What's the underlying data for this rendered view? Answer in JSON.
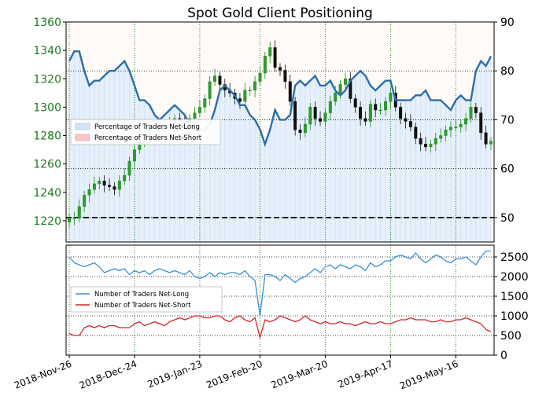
{
  "chart_data": [
    {
      "type": "candlestick+line",
      "title": "Spot Gold Client Positioning",
      "left_axis": {
        "ticks": [
          1220,
          1240,
          1260,
          1280,
          1300,
          1320,
          1340,
          1360
        ],
        "ylim": [
          1205,
          1360
        ],
        "color": "#1a7a1a"
      },
      "right_axis": {
        "ticks": [
          50,
          60,
          70,
          80,
          90
        ],
        "ylim": [
          45,
          90
        ]
      },
      "x_ticks": [
        "2018-Nov-26",
        "2018-Dec-24",
        "2019-Jan-23",
        "2019-Feb-20",
        "2019-Mar-20",
        "2019-Apr-17",
        "2019-May-16"
      ],
      "legend": {
        "placement": "center-left",
        "entries": [
          {
            "name": "Percentage of Traders Net-Long",
            "color": "#cfe4f7"
          },
          {
            "name": "Percentage of Traders Net-Short",
            "color": "#f7c6c6"
          }
        ]
      },
      "reference_line": {
        "value": 50,
        "style": "dashed",
        "color": "#000000"
      },
      "grid": true,
      "price_close": [
        1222,
        1222,
        1230,
        1238,
        1242,
        1246,
        1248,
        1245,
        1244,
        1242,
        1248,
        1252,
        1262,
        1270,
        1276,
        1280,
        1284,
        1286,
        1284,
        1286,
        1288,
        1292,
        1290,
        1288,
        1292,
        1296,
        1300,
        1306,
        1318,
        1322,
        1316,
        1312,
        1310,
        1306,
        1304,
        1312,
        1312,
        1318,
        1324,
        1336,
        1342,
        1328,
        1326,
        1318,
        1304,
        1284,
        1282,
        1288,
        1300,
        1292,
        1290,
        1296,
        1304,
        1310,
        1316,
        1320,
        1306,
        1300,
        1292,
        1290,
        1302,
        1298,
        1298,
        1304,
        1310,
        1300,
        1292,
        1290,
        1286,
        1278,
        1274,
        1272,
        1274,
        1278,
        1280,
        1284,
        1286,
        1286,
        1288,
        1292,
        1300,
        1296,
        1282,
        1274,
        1276
      ],
      "pct_net_long": [
        82,
        84,
        84,
        80,
        77,
        78,
        78,
        79,
        80,
        80,
        81,
        82,
        80,
        77,
        74,
        74,
        73,
        71,
        70,
        71,
        72,
        73,
        72,
        71,
        69,
        68,
        68,
        68,
        69,
        72,
        76,
        77,
        76,
        75,
        73,
        73,
        71,
        70,
        68,
        65,
        68,
        72,
        70,
        70,
        71,
        77,
        78,
        77,
        78,
        79,
        77,
        77,
        78,
        76,
        75,
        76,
        78,
        79,
        80,
        79,
        77,
        76,
        77,
        78,
        78,
        74,
        74,
        74,
        74,
        75,
        75,
        76,
        74,
        74,
        74,
        73,
        72,
        74,
        75,
        74,
        74,
        80,
        82,
        81,
        83
      ]
    },
    {
      "type": "line",
      "yticks": [
        0,
        500,
        1000,
        1500,
        2000,
        2500
      ],
      "ylim": [
        0,
        2800
      ],
      "legend": {
        "placement": "center-left",
        "entries": [
          {
            "name": "Number of Traders Net-Long",
            "color": "#3a8fd6"
          },
          {
            "name": "Number of Traders Net-Short",
            "color": "#d62728"
          }
        ]
      },
      "grid": true,
      "series": [
        {
          "name": "Number of Traders Net-Long",
          "values": [
            2500,
            2350,
            2300,
            2250,
            2300,
            2350,
            2250,
            2100,
            2150,
            2200,
            2150,
            2200,
            2050,
            2150,
            2100,
            2150,
            2050,
            2150,
            2200,
            2150,
            2100,
            2150,
            2100,
            2050,
            2150,
            2000,
            1950,
            2000,
            2100,
            2000,
            2100,
            2050,
            2100,
            2100,
            2050,
            2150,
            2000,
            1900,
            1000,
            2050,
            2050,
            2000,
            1900,
            2050,
            1950,
            1850,
            1950,
            2000,
            2100,
            2200,
            2100,
            2250,
            2300,
            2200,
            2300,
            2250,
            2200,
            2300,
            2250,
            2150,
            2350,
            2250,
            2300,
            2400,
            2400,
            2500,
            2550,
            2500,
            2450,
            2600,
            2450,
            2350,
            2450,
            2550,
            2500,
            2400,
            2350,
            2450,
            2450,
            2500,
            2400,
            2300,
            2500,
            2650,
            2650
          ]
        },
        {
          "name": "Number of Traders Net-Short",
          "values": [
            550,
            500,
            500,
            700,
            750,
            700,
            750,
            700,
            750,
            750,
            700,
            700,
            700,
            800,
            850,
            750,
            800,
            850,
            800,
            750,
            850,
            900,
            950,
            900,
            950,
            1000,
            1000,
            950,
            950,
            1000,
            1000,
            900,
            850,
            950,
            1000,
            900,
            850,
            950,
            450,
            900,
            850,
            900,
            1000,
            950,
            900,
            850,
            900,
            1000,
            900,
            850,
            800,
            850,
            800,
            800,
            850,
            800,
            800,
            750,
            800,
            850,
            800,
            800,
            850,
            800,
            800,
            850,
            900,
            900,
            950,
            900,
            900,
            900,
            850,
            850,
            900,
            850,
            850,
            900,
            900,
            950,
            900,
            850,
            800,
            650,
            600
          ]
        }
      ]
    }
  ]
}
